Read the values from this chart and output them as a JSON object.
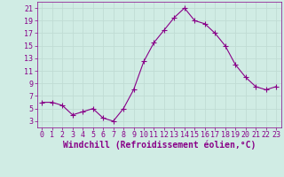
{
  "x": [
    0,
    1,
    2,
    3,
    4,
    5,
    6,
    7,
    8,
    9,
    10,
    11,
    12,
    13,
    14,
    15,
    16,
    17,
    18,
    19,
    20,
    21,
    22,
    23
  ],
  "y": [
    6,
    6,
    5.5,
    4,
    4.5,
    5,
    3.5,
    3,
    5,
    8,
    12.5,
    15.5,
    17.5,
    19.5,
    21,
    19,
    18.5,
    17,
    15,
    12,
    10,
    8.5,
    8,
    8.5
  ],
  "line_color": "#880088",
  "marker": "+",
  "marker_size": 4,
  "bg_color": "#d0ece4",
  "grid_color": "#c0dcd4",
  "xlabel": "Windchill (Refroidissement éolien,°C)",
  "xlabel_color": "#880088",
  "xlabel_fontsize": 7,
  "tick_color": "#880088",
  "tick_fontsize": 6,
  "yticks": [
    3,
    5,
    7,
    9,
    11,
    13,
    15,
    17,
    19,
    21
  ],
  "xticks": [
    0,
    1,
    2,
    3,
    4,
    5,
    6,
    7,
    8,
    9,
    10,
    11,
    12,
    13,
    14,
    15,
    16,
    17,
    18,
    19,
    20,
    21,
    22,
    23
  ],
  "ylim": [
    2.0,
    22.0
  ],
  "xlim": [
    -0.5,
    23.5
  ]
}
